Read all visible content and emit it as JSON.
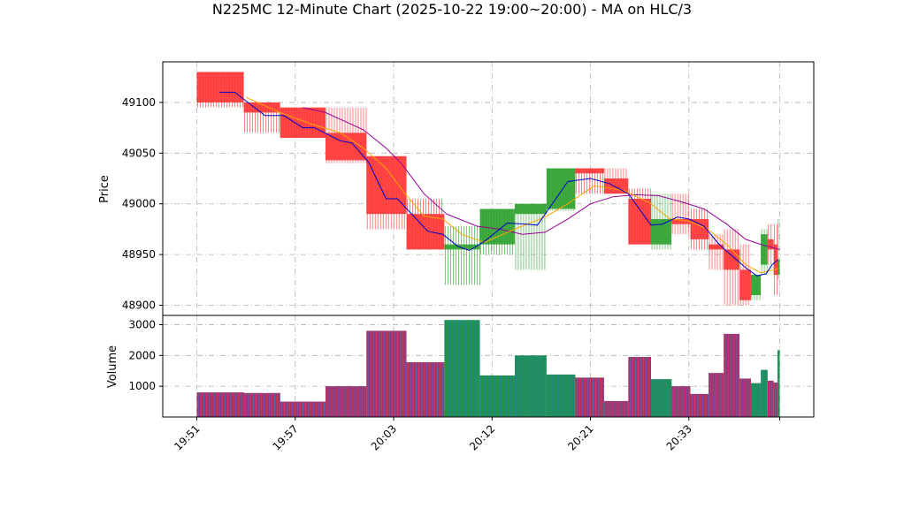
{
  "chart_data": {
    "type": "candlestick",
    "title": "N225MC 12-Minute Chart (2025-10-22 19:00~20:00) - MA on HLC/3",
    "price_panel": {
      "ylabel": "Price",
      "ylim": [
        48890,
        49140
      ],
      "yticks": [
        48900,
        48950,
        49000,
        49050,
        49100
      ],
      "colors": {
        "up": "#2ca02c",
        "down": "#ff3333",
        "ma_short": "#0000cc",
        "ma_mid": "#ffa500",
        "ma_long": "#990099"
      }
    },
    "volume_panel": {
      "ylabel": "Volume",
      "ylim": [
        0,
        3300
      ],
      "yticks": [
        1000,
        2000,
        3000
      ]
    },
    "xaxis": {
      "xlim": [
        -0.35,
        8.25
      ],
      "ticks": [
        {
          "pos": 0.1,
          "label": "19:51"
        },
        {
          "pos": 1.4,
          "label": "19:57"
        },
        {
          "pos": 2.7,
          "label": "20:03"
        },
        {
          "pos": 4.0,
          "label": "20:12"
        },
        {
          "pos": 5.3,
          "label": "20:21"
        },
        {
          "pos": 6.6,
          "label": "20:33"
        },
        {
          "pos": 7.8,
          "label": ""
        }
      ]
    },
    "bars": [
      {
        "x0": 0.1,
        "x1": 0.72,
        "open": 49130,
        "close": 49100,
        "high": 49130,
        "low": 49095,
        "volume": 800
      },
      {
        "x0": 0.72,
        "x1": 1.2,
        "open": 49100,
        "close": 49090,
        "high": 49100,
        "low": 49070,
        "volume": 780
      },
      {
        "x0": 1.2,
        "x1": 1.8,
        "open": 49095,
        "close": 49065,
        "high": 49095,
        "low": 49065,
        "volume": 500
      },
      {
        "x0": 1.8,
        "x1": 2.34,
        "open": 49070,
        "close": 49043,
        "high": 49095,
        "low": 49040,
        "volume": 1000
      },
      {
        "x0": 2.34,
        "x1": 2.87,
        "open": 49047,
        "close": 48990,
        "high": 49047,
        "low": 48975,
        "volume": 2800
      },
      {
        "x0": 2.87,
        "x1": 3.37,
        "open": 48990,
        "close": 48955,
        "high": 49005,
        "low": 48955,
        "volume": 1780
      },
      {
        "x0": 3.37,
        "x1": 3.84,
        "open": 48955,
        "close": 48960,
        "high": 48978,
        "low": 48920,
        "volume": 3150
      },
      {
        "x0": 3.84,
        "x1": 4.3,
        "open": 48960,
        "close": 48995,
        "high": 48995,
        "low": 48950,
        "volume": 1350
      },
      {
        "x0": 4.3,
        "x1": 4.72,
        "open": 48990,
        "close": 49000,
        "high": 49000,
        "low": 48935,
        "volume": 2000
      },
      {
        "x0": 4.72,
        "x1": 5.1,
        "open": 48995,
        "close": 49035,
        "high": 49035,
        "low": 48993,
        "volume": 1380
      },
      {
        "x0": 5.1,
        "x1": 5.48,
        "open": 49035,
        "close": 49030,
        "high": 49035,
        "low": 49010,
        "volume": 1280
      },
      {
        "x0": 5.48,
        "x1": 5.8,
        "open": 49025,
        "close": 49010,
        "high": 49035,
        "low": 49010,
        "volume": 520
      },
      {
        "x0": 5.8,
        "x1": 6.1,
        "open": 49005,
        "close": 48960,
        "high": 49015,
        "low": 48960,
        "volume": 1950
      },
      {
        "x0": 6.1,
        "x1": 6.37,
        "open": 48960,
        "close": 48985,
        "high": 49010,
        "low": 48955,
        "volume": 1230
      },
      {
        "x0": 6.37,
        "x1": 6.62,
        "open": 48985,
        "close": 48980,
        "high": 49010,
        "low": 48970,
        "volume": 1000
      },
      {
        "x0": 6.62,
        "x1": 6.86,
        "open": 48985,
        "close": 48965,
        "high": 48995,
        "low": 48955,
        "volume": 750
      },
      {
        "x0": 6.86,
        "x1": 7.06,
        "open": 48960,
        "close": 48955,
        "high": 48970,
        "low": 48935,
        "volume": 1430
      },
      {
        "x0": 7.06,
        "x1": 7.27,
        "open": 48955,
        "close": 48935,
        "high": 48975,
        "low": 48900,
        "volume": 2700
      },
      {
        "x0": 7.27,
        "x1": 7.42,
        "open": 48935,
        "close": 48905,
        "high": 48960,
        "low": 48900,
        "volume": 1250
      },
      {
        "x0": 7.42,
        "x1": 7.55,
        "open": 48910,
        "close": 48930,
        "high": 48930,
        "low": 48905,
        "volume": 1100
      },
      {
        "x0": 7.55,
        "x1": 7.64,
        "open": 48940,
        "close": 48970,
        "high": 48975,
        "low": 48930,
        "volume": 1530
      },
      {
        "x0": 7.64,
        "x1": 7.72,
        "open": 48965,
        "close": 48955,
        "high": 48980,
        "low": 48940,
        "volume": 1180
      },
      {
        "x0": 7.72,
        "x1": 7.77,
        "open": 48960,
        "close": 48930,
        "high": 48980,
        "low": 48910,
        "volume": 1120
      },
      {
        "x0": 7.77,
        "x1": 7.8,
        "open": 48930,
        "close": 48945,
        "high": 48985,
        "low": 48925,
        "volume": 2170
      }
    ],
    "ma_short": [
      [
        0.4,
        49110
      ],
      [
        0.6,
        49110
      ],
      [
        1.0,
        49087
      ],
      [
        1.25,
        49087
      ],
      [
        1.5,
        49075
      ],
      [
        1.65,
        49075
      ],
      [
        2.0,
        49062
      ],
      [
        2.15,
        49060
      ],
      [
        2.37,
        49041
      ],
      [
        2.6,
        49005
      ],
      [
        2.75,
        49005
      ],
      [
        3.0,
        48985
      ],
      [
        3.15,
        48973
      ],
      [
        3.35,
        48970
      ],
      [
        3.55,
        48958
      ],
      [
        3.7,
        48954
      ],
      [
        3.9,
        48963
      ],
      [
        4.2,
        48981
      ],
      [
        4.45,
        48980
      ],
      [
        4.6,
        48979
      ],
      [
        5.0,
        49022
      ],
      [
        5.3,
        49025
      ],
      [
        5.55,
        49020
      ],
      [
        5.8,
        49010
      ],
      [
        6.1,
        48979
      ],
      [
        6.25,
        48980
      ],
      [
        6.45,
        48987
      ],
      [
        6.6,
        48985
      ],
      [
        6.8,
        48978
      ],
      [
        7.0,
        48960
      ],
      [
        7.15,
        48950
      ],
      [
        7.35,
        48937
      ],
      [
        7.5,
        48929
      ],
      [
        7.62,
        48931
      ],
      [
        7.7,
        48940
      ],
      [
        7.78,
        48945
      ]
    ],
    "ma_mid": [
      [
        0.75,
        49105
      ],
      [
        1.2,
        49090
      ],
      [
        1.6,
        49079
      ],
      [
        2.0,
        49070
      ],
      [
        2.3,
        49055
      ],
      [
        2.6,
        49035
      ],
      [
        2.85,
        49010
      ],
      [
        3.1,
        48988
      ],
      [
        3.35,
        48985
      ],
      [
        3.6,
        48970
      ],
      [
        3.9,
        48962
      ],
      [
        4.3,
        48975
      ],
      [
        4.7,
        48987
      ],
      [
        5.0,
        49000
      ],
      [
        5.35,
        49018
      ],
      [
        5.75,
        49013
      ],
      [
        6.1,
        49000
      ],
      [
        6.35,
        48985
      ],
      [
        6.6,
        48983
      ],
      [
        6.85,
        48975
      ],
      [
        7.1,
        48960
      ],
      [
        7.35,
        48940
      ],
      [
        7.55,
        48932
      ],
      [
        7.78,
        48936
      ]
    ],
    "ma_long": [
      [
        1.5,
        49095
      ],
      [
        1.8,
        49090
      ],
      [
        2.3,
        49073
      ],
      [
        2.6,
        49055
      ],
      [
        2.8,
        49040
      ],
      [
        3.1,
        49010
      ],
      [
        3.4,
        48990
      ],
      [
        3.8,
        48978
      ],
      [
        4.1,
        48975
      ],
      [
        4.4,
        48970
      ],
      [
        4.7,
        48972
      ],
      [
        5.0,
        48985
      ],
      [
        5.3,
        49000
      ],
      [
        5.6,
        49007
      ],
      [
        5.9,
        49009
      ],
      [
        6.2,
        49008
      ],
      [
        6.5,
        49002
      ],
      [
        6.8,
        48995
      ],
      [
        7.1,
        48980
      ],
      [
        7.35,
        48965
      ],
      [
        7.55,
        48960
      ],
      [
        7.8,
        48955
      ]
    ]
  }
}
